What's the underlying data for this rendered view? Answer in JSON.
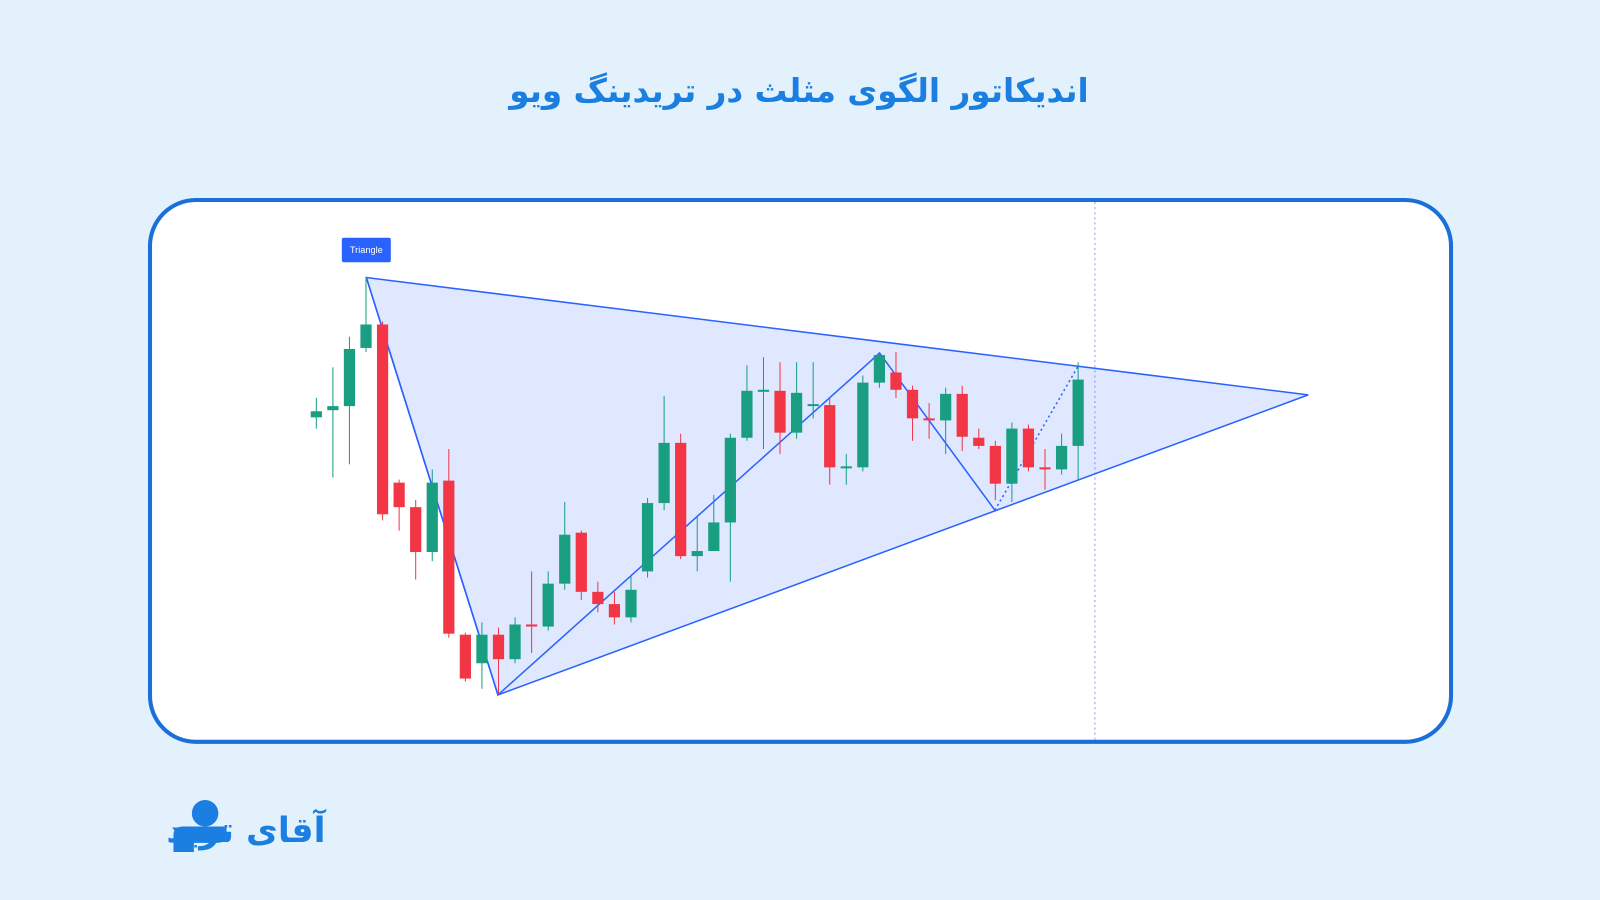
{
  "chart_data": {
    "type": "candlestick",
    "title": "اندیکاتور الگوی مثلث در  تریدینگ ویو",
    "annotation": "Triangle",
    "up_color": "#1a9e82",
    "down_color": "#f23645",
    "open": [
      291,
      298,
      302,
      359,
      382,
      227,
      203,
      159,
      229,
      78,
      50,
      78,
      54,
      88,
      86,
      128,
      178,
      120,
      108,
      95,
      140,
      207,
      266,
      155,
      160,
      188,
      271,
      317,
      317,
      276,
      303,
      303,
      242,
      242,
      325,
      335,
      318,
      290,
      288,
      314,
      271,
      263,
      226,
      280,
      242,
      240,
      263
    ],
    "high": [
      310,
      340,
      370,
      428,
      385,
      230,
      210,
      240,
      260,
      80,
      90,
      85,
      95,
      140,
      140,
      208,
      180,
      130,
      120,
      135,
      212,
      312,
      275,
      195,
      215,
      275,
      342,
      350,
      345,
      345,
      345,
      310,
      255,
      332,
      355,
      355,
      322,
      305,
      320,
      322,
      280,
      268,
      286,
      284,
      260,
      275,
      345
    ],
    "low": [
      280,
      232,
      245,
      355,
      190,
      180,
      132,
      150,
      75,
      32,
      25,
      20,
      50,
      60,
      82,
      122,
      112,
      100,
      88,
      90,
      134,
      200,
      152,
      140,
      160,
      130,
      268,
      260,
      255,
      270,
      290,
      225,
      225,
      238,
      320,
      310,
      268,
      270,
      255,
      258,
      260,
      210,
      208,
      238,
      220,
      235,
      230
    ],
    "close": [
      297,
      302,
      358,
      382,
      196,
      203,
      159,
      227,
      79,
      35,
      78,
      54,
      88,
      86,
      128,
      176,
      120,
      108,
      95,
      122,
      207,
      266,
      155,
      160,
      188,
      271,
      317,
      318,
      276,
      315,
      304,
      242,
      243,
      325,
      352,
      318,
      290,
      288,
      314,
      272,
      263,
      226,
      280,
      242,
      240,
      263,
      328
    ]
  },
  "logo": "آقای ترید"
}
